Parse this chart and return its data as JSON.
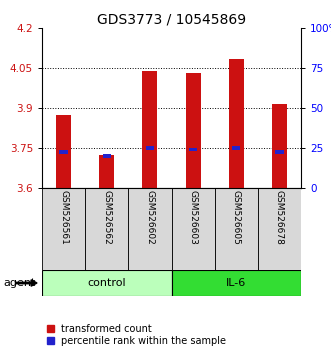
{
  "title": "GDS3773 / 10545869",
  "samples": [
    "GSM526561",
    "GSM526562",
    "GSM526602",
    "GSM526603",
    "GSM526605",
    "GSM526678"
  ],
  "red_values": [
    3.875,
    3.725,
    4.04,
    4.03,
    4.085,
    3.915
  ],
  "blue_values": [
    3.735,
    3.72,
    3.75,
    3.745,
    3.75,
    3.735
  ],
  "ymin": 3.6,
  "ymax": 4.2,
  "yticks_left": [
    3.6,
    3.75,
    3.9,
    4.05,
    4.2
  ],
  "yticks_right_vals": [
    0,
    25,
    50,
    75,
    100
  ],
  "yticks_right_labels": [
    "0",
    "25",
    "50",
    "75",
    "100%"
  ],
  "gridlines": [
    3.75,
    3.9,
    4.05
  ],
  "groups": [
    {
      "label": "control",
      "indices": [
        0,
        1,
        2
      ],
      "color": "#bbffbb"
    },
    {
      "label": "IL-6",
      "indices": [
        3,
        4,
        5
      ],
      "color": "#33dd33"
    }
  ],
  "agent_label": "agent",
  "red_color": "#cc1111",
  "blue_color": "#2222cc",
  "bar_width": 0.35,
  "title_fontsize": 10,
  "tick_fontsize": 7.5,
  "label_fontsize": 6.5,
  "legend_fontsize": 7,
  "group_fontsize": 8
}
